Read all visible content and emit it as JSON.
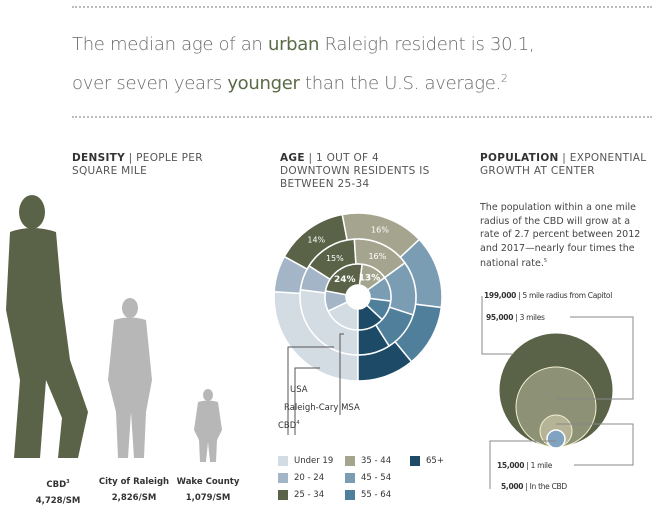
{
  "headline": {
    "line1_pre": "The median age of an ",
    "line1_bold": "urban",
    "line1_post": " Raleigh resident is 30.1,",
    "line2_pre": "over seven years ",
    "line2_bold": "younger",
    "line2_post": " than the U.S. average.",
    "footnote": "2"
  },
  "density": {
    "title": "DENSITY",
    "sep": " | ",
    "subtitle": "PEOPLE PER SQUARE MILE",
    "items": [
      {
        "name": "CBD",
        "sup": "3",
        "value": "4,728/SM",
        "color": "#5a6347"
      },
      {
        "name": "City of Raleigh",
        "sup": "",
        "value": "2,826/SM",
        "color": "#b7b7b7"
      },
      {
        "name": "Wake County",
        "sup": "",
        "value": "1,079/SM",
        "color": "#b7b7b7"
      }
    ]
  },
  "age": {
    "title": "AGE",
    "sep": " | ",
    "subtitle": "1 OUT OF 4 DOWNTOWN RESIDENTS IS BETWEEN 25-34",
    "ring_labels": {
      "usa": "USA",
      "msa": "Raleigh-Cary MSA",
      "cbd": "CBD",
      "cbd_sup": "4"
    },
    "chart_data": {
      "type": "pie",
      "subtype": "multi-ring donut",
      "categories": [
        "Under 19",
        "20 - 24",
        "25 - 34",
        "35 - 44",
        "45 - 54",
        "55 - 64",
        "65+"
      ],
      "colors": [
        "#d3dbe3",
        "#a3b5c6",
        "#5a6347",
        "#a5a58f",
        "#7b9db4",
        "#4f7f9a",
        "#1d4a66"
      ],
      "series": [
        {
          "name": "USA",
          "values": [
            26,
            7,
            14,
            16,
            14,
            12,
            11
          ]
        },
        {
          "name": "Raleigh-Cary MSA",
          "values": [
            27,
            7,
            15,
            16,
            15,
            11,
            9
          ]
        },
        {
          "name": "CBD",
          "values": [
            18,
            10,
            24,
            13,
            12,
            10,
            13
          ]
        }
      ],
      "data_labels": {
        "USA": [
          "",
          "",
          "14%",
          "16%",
          "",
          "",
          ""
        ],
        "Raleigh-Cary MSA": [
          "",
          "",
          "15%",
          "16%",
          "",
          "",
          ""
        ],
        "CBD": [
          "",
          "",
          "24%",
          "13%",
          "",
          "",
          ""
        ]
      }
    }
  },
  "population": {
    "title": "POPULATION",
    "sep": " | ",
    "subtitle": "EXPONENTIAL GROWTH AT CENTER",
    "body": "The population within a one mile radius of the CBD will grow at a rate of 2.7 percent between 2012 and 2017—nearly four times the national rate.",
    "body_sup": "5",
    "circles": [
      {
        "value": "199,000",
        "label": "5 mile radius from Capitol",
        "color": "#5a6347"
      },
      {
        "value": "95,000",
        "label": "3 miles",
        "color": "#8d9175"
      },
      {
        "value": "15,000",
        "label": "1 mile",
        "color": "#b6b497"
      },
      {
        "value": "5,000",
        "label": "In the CBD",
        "color": "#7fa3c0"
      }
    ]
  }
}
